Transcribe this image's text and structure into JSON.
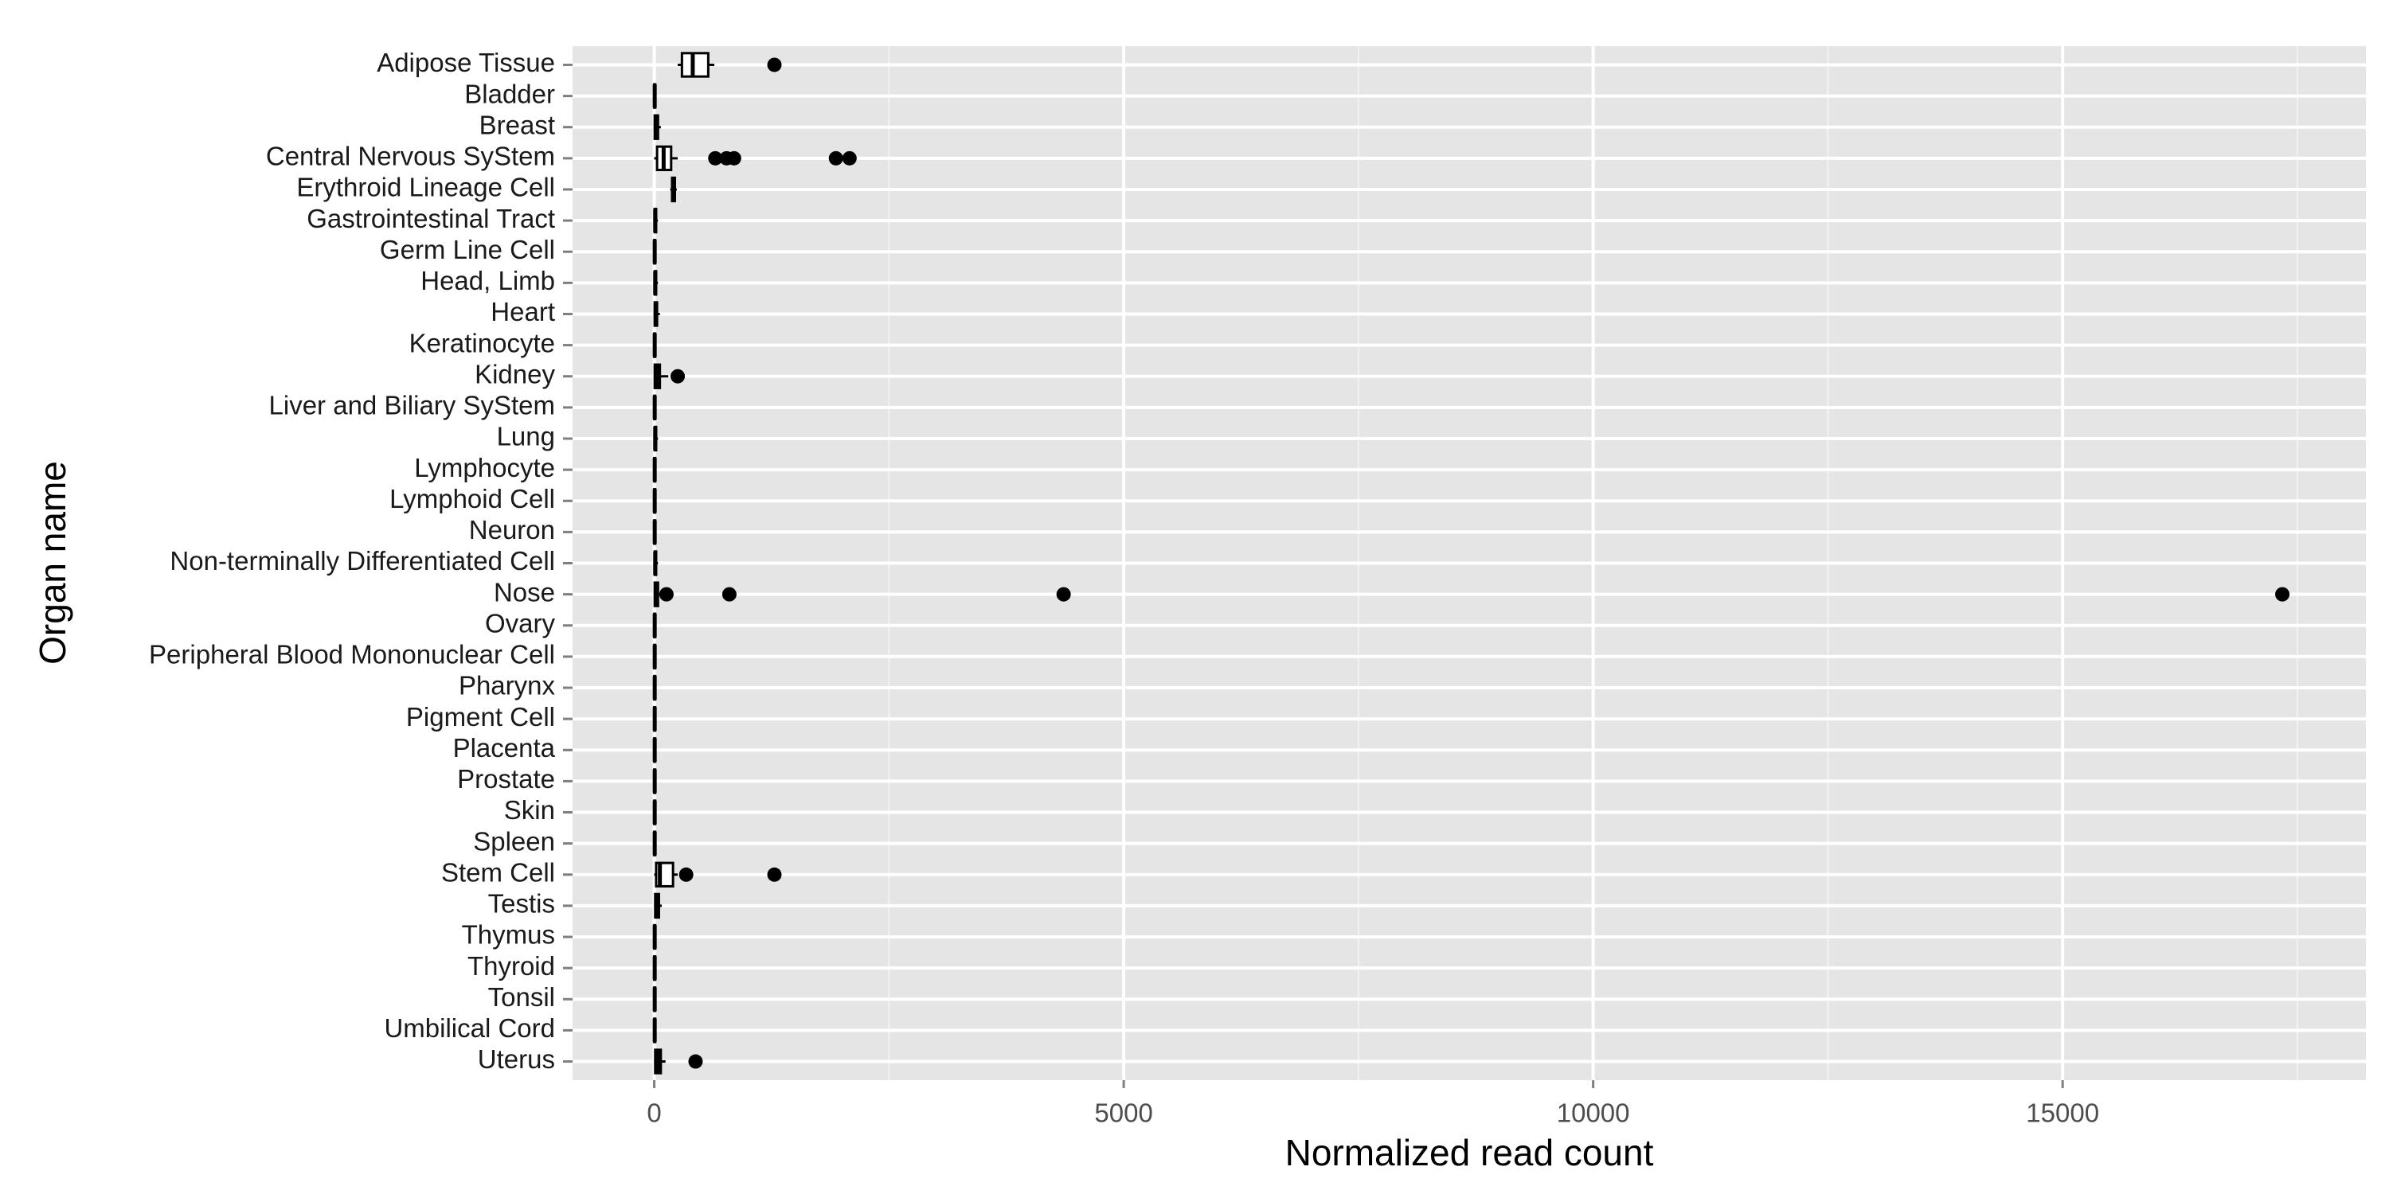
{
  "chart_data": {
    "type": "box",
    "orientation": "horizontal",
    "x_label": "Normalized read count",
    "y_label": "Organ name",
    "categories": [
      "Adipose Tissue",
      "Bladder",
      "Breast",
      "Central Nervous SyStem",
      "Erythroid Lineage Cell",
      "Gastrointestinal Tract",
      "Germ Line Cell",
      "Head, Limb",
      "Heart",
      "Keratinocyte",
      "Kidney",
      "Liver and Biliary SyStem",
      "Lung",
      "Lymphocyte",
      "Lymphoid Cell",
      "Neuron",
      "Non-terminally Differentiated Cell",
      "Nose",
      "Ovary",
      "Peripheral Blood Mononuclear Cell",
      "Pharynx",
      "Pigment Cell",
      "Placenta",
      "Prostate",
      "Skin",
      "Spleen",
      "Stem Cell",
      "Testis",
      "Thymus",
      "Thyroid",
      "Tonsil",
      "Umbilical Cord",
      "Uterus"
    ],
    "boxes": [
      {
        "low": 250,
        "q1": 295,
        "median": 410,
        "q3": 575,
        "high": 640,
        "outliers": [
          1280
        ]
      },
      {
        "low": 0,
        "q1": 0,
        "median": 5,
        "q3": 10,
        "high": 20,
        "outliers": []
      },
      {
        "low": 0,
        "q1": 5,
        "median": 20,
        "q3": 40,
        "high": 70,
        "outliers": []
      },
      {
        "low": 0,
        "q1": 30,
        "median": 100,
        "q3": 180,
        "high": 250,
        "outliers": [
          650,
          770,
          850,
          1935,
          2080
        ]
      },
      {
        "low": 170,
        "q1": 190,
        "median": 200,
        "q3": 220,
        "high": 240,
        "outliers": []
      },
      {
        "low": 0,
        "q1": 5,
        "median": 10,
        "q3": 20,
        "high": 40,
        "outliers": []
      },
      {
        "low": 0,
        "q1": 0,
        "median": 5,
        "q3": 10,
        "high": 20,
        "outliers": []
      },
      {
        "low": 0,
        "q1": 5,
        "median": 10,
        "q3": 20,
        "high": 40,
        "outliers": []
      },
      {
        "low": 0,
        "q1": 5,
        "median": 15,
        "q3": 30,
        "high": 60,
        "outliers": []
      },
      {
        "low": 0,
        "q1": 0,
        "median": 5,
        "q3": 10,
        "high": 20,
        "outliers": []
      },
      {
        "low": 0,
        "q1": 5,
        "median": 30,
        "q3": 60,
        "high": 150,
        "outliers": [
          250
        ]
      },
      {
        "low": 0,
        "q1": 0,
        "median": 5,
        "q3": 10,
        "high": 20,
        "outliers": []
      },
      {
        "low": 0,
        "q1": 5,
        "median": 10,
        "q3": 20,
        "high": 40,
        "outliers": []
      },
      {
        "low": 0,
        "q1": 0,
        "median": 5,
        "q3": 10,
        "high": 20,
        "outliers": []
      },
      {
        "low": 0,
        "q1": 0,
        "median": 5,
        "q3": 10,
        "high": 20,
        "outliers": []
      },
      {
        "low": 0,
        "q1": 0,
        "median": 5,
        "q3": 10,
        "high": 20,
        "outliers": []
      },
      {
        "low": 0,
        "q1": 5,
        "median": 10,
        "q3": 20,
        "high": 40,
        "outliers": []
      },
      {
        "low": 0,
        "q1": 5,
        "median": 20,
        "q3": 40,
        "high": 100,
        "outliers": [
          130,
          800,
          4360,
          17340
        ]
      },
      {
        "low": 0,
        "q1": 0,
        "median": 5,
        "q3": 10,
        "high": 20,
        "outliers": []
      },
      {
        "low": 0,
        "q1": 0,
        "median": 5,
        "q3": 10,
        "high": 20,
        "outliers": []
      },
      {
        "low": 0,
        "q1": 0,
        "median": 5,
        "q3": 10,
        "high": 20,
        "outliers": []
      },
      {
        "low": 0,
        "q1": 0,
        "median": 5,
        "q3": 10,
        "high": 20,
        "outliers": []
      },
      {
        "low": 0,
        "q1": 0,
        "median": 5,
        "q3": 10,
        "high": 20,
        "outliers": []
      },
      {
        "low": 0,
        "q1": 0,
        "median": 5,
        "q3": 10,
        "high": 20,
        "outliers": []
      },
      {
        "low": 0,
        "q1": 0,
        "median": 5,
        "q3": 10,
        "high": 20,
        "outliers": []
      },
      {
        "low": 0,
        "q1": 0,
        "median": 5,
        "q3": 10,
        "high": 20,
        "outliers": []
      },
      {
        "low": 0,
        "q1": 20,
        "median": 60,
        "q3": 200,
        "high": 250,
        "outliers": [
          340,
          1280
        ]
      },
      {
        "low": 0,
        "q1": 10,
        "median": 30,
        "q3": 50,
        "high": 80,
        "outliers": []
      },
      {
        "low": 0,
        "q1": 0,
        "median": 5,
        "q3": 10,
        "high": 20,
        "outliers": []
      },
      {
        "low": 0,
        "q1": 0,
        "median": 5,
        "q3": 10,
        "high": 20,
        "outliers": []
      },
      {
        "low": 0,
        "q1": 0,
        "median": 5,
        "q3": 10,
        "high": 20,
        "outliers": []
      },
      {
        "low": 0,
        "q1": 0,
        "median": 5,
        "q3": 10,
        "high": 20,
        "outliers": []
      },
      {
        "low": 0,
        "q1": 10,
        "median": 40,
        "q3": 70,
        "high": 120,
        "outliers": [
          440
        ]
      }
    ],
    "color": "#000000",
    "panel_color": "#e5e5e5",
    "grid": true,
    "xlim": [
      -870,
      18230
    ],
    "xticks": [
      0,
      5000,
      10000,
      15000
    ],
    "xminor_ticks": [
      2500,
      7500,
      12500,
      17500
    ]
  }
}
